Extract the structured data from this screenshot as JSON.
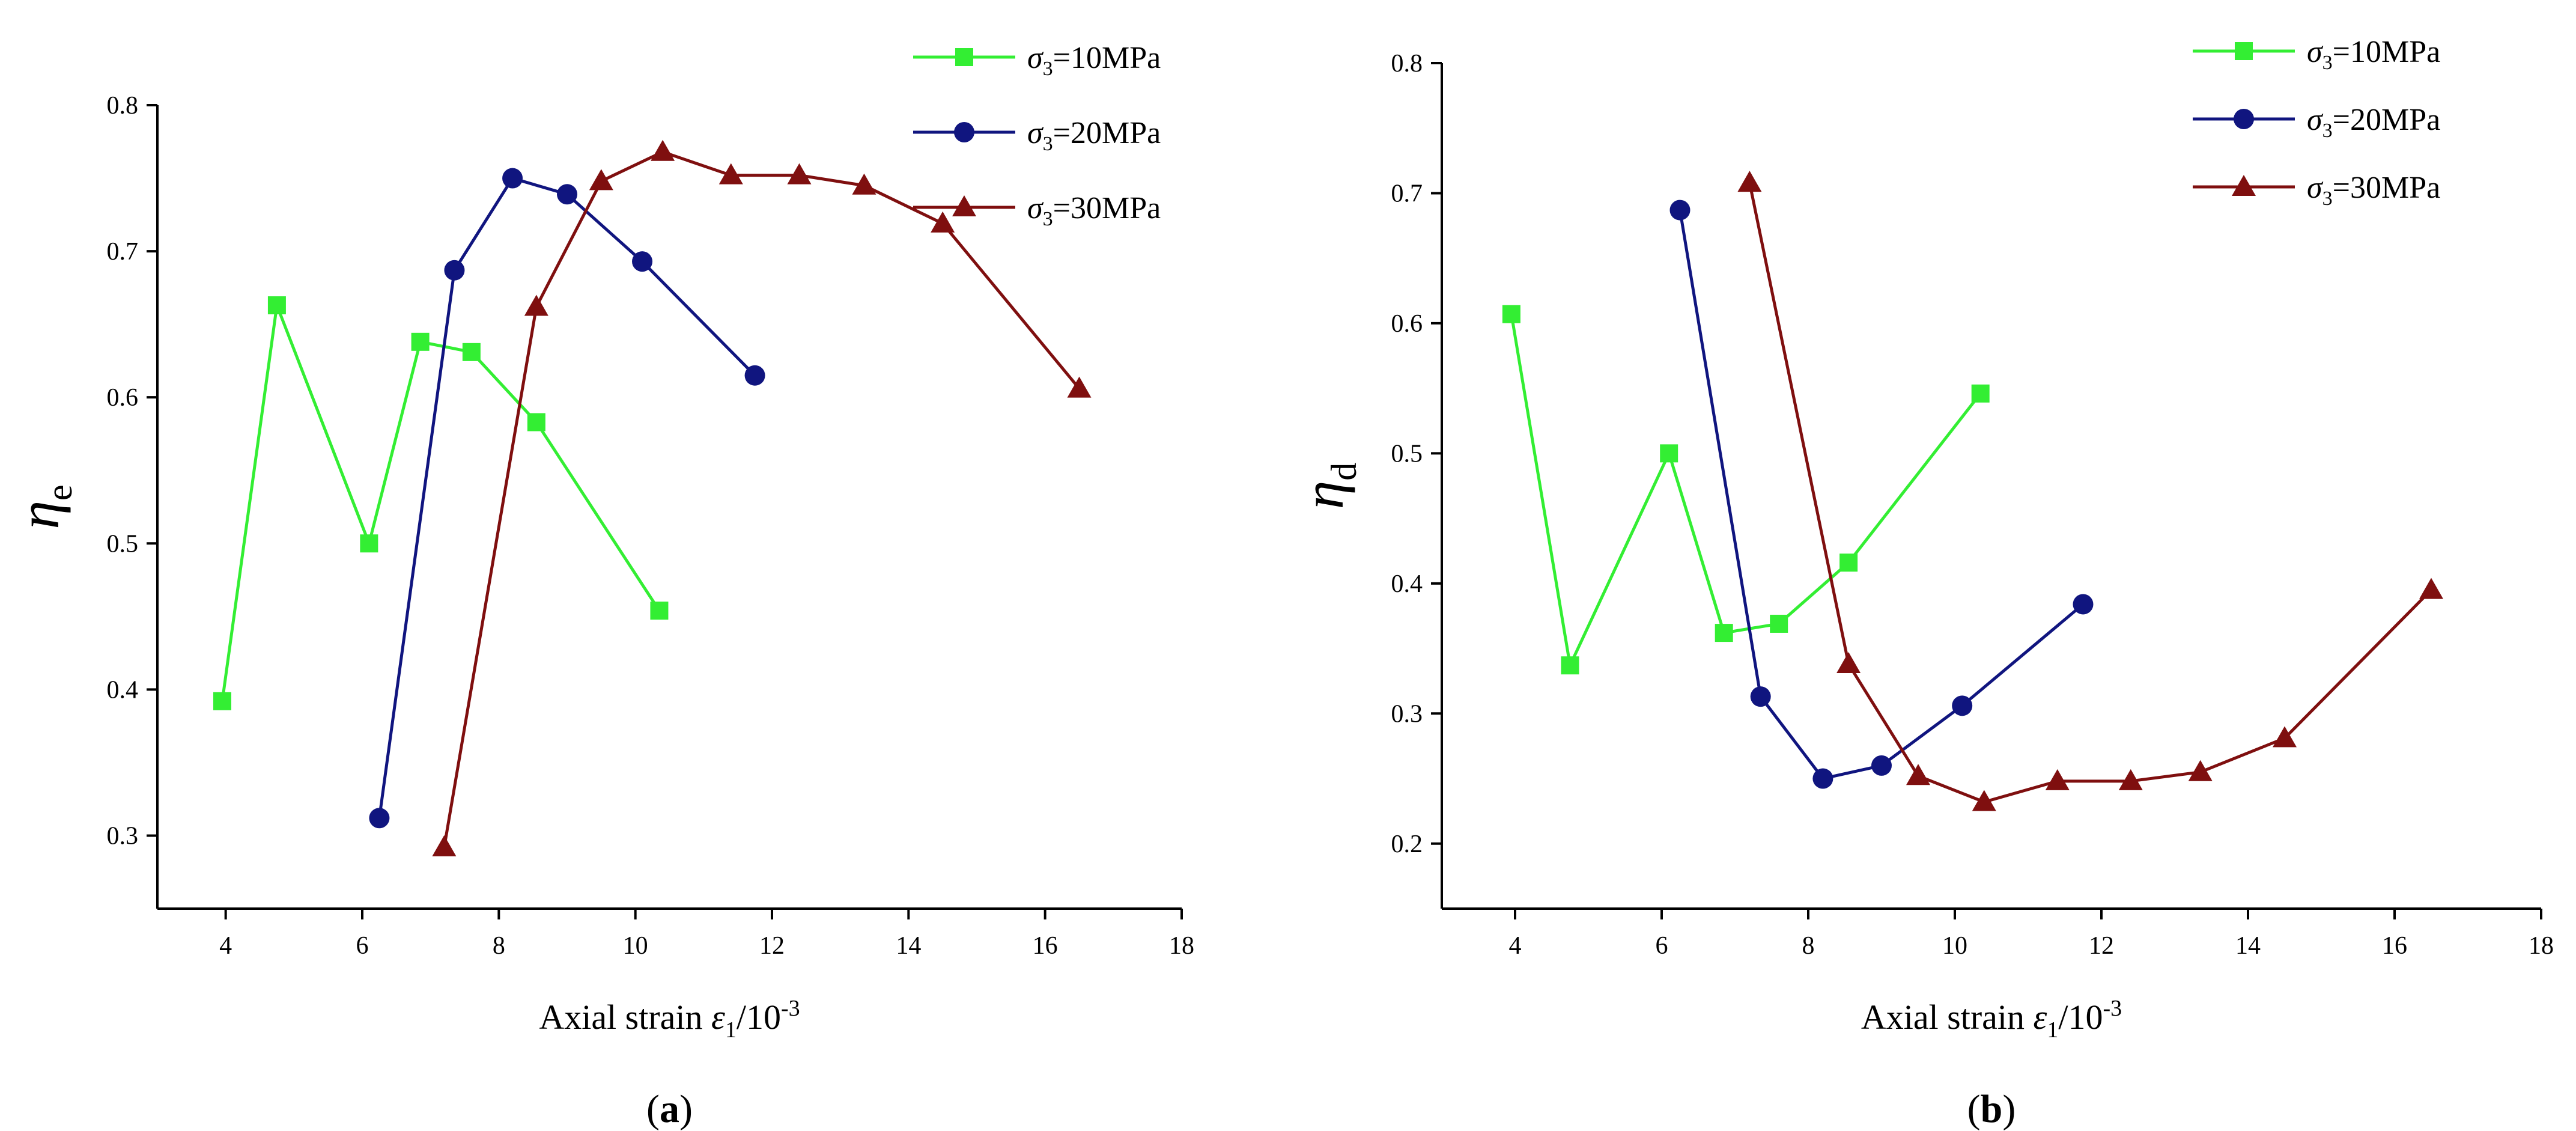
{
  "colors": {
    "series_10": "#33ee33",
    "series_20": "#10157f",
    "series_30": "#7f0f0f",
    "axis": "#000000"
  },
  "chart_data": [
    {
      "type": "line",
      "panel_label": "a",
      "ylabel_symbol": "η",
      "ylabel_sub": "e",
      "xlabel_text": "Axial strain",
      "xlabel_symbol": "ε",
      "xlabel_sub": "1",
      "xlabel_unit": "/10",
      "xlabel_exp": "-3",
      "xlim": [
        3,
        18
      ],
      "ylim": [
        0.25,
        0.8
      ],
      "xticks": [
        "4",
        "6",
        "8",
        "10",
        "12",
        "14",
        "16",
        "18"
      ],
      "yticks": [
        "0.3",
        "0.4",
        "0.5",
        "0.6",
        "0.7",
        "0.8"
      ],
      "legend_position": "top-right",
      "series": [
        {
          "name": "σ3=10MPa",
          "label_symbol": "σ",
          "label_sub": "3",
          "label_rest": "=10MPa",
          "marker": "square",
          "color_key": "series_10",
          "x": [
            3.95,
            4.75,
            6.1,
            6.85,
            7.6,
            8.55,
            10.35
          ],
          "y": [
            0.392,
            0.663,
            0.5,
            0.638,
            0.631,
            0.583,
            0.454
          ]
        },
        {
          "name": "σ3=20MPa",
          "label_symbol": "σ",
          "label_sub": "3",
          "label_rest": "=20MPa",
          "marker": "circle",
          "color_key": "series_20",
          "x": [
            6.25,
            7.35,
            8.2,
            9.0,
            10.1,
            11.75
          ],
          "y": [
            0.312,
            0.687,
            0.75,
            0.739,
            0.693,
            0.615
          ]
        },
        {
          "name": "σ3=30MPa",
          "label_symbol": "σ",
          "label_sub": "3",
          "label_rest": "=30MPa",
          "marker": "triangle",
          "color_key": "series_30",
          "x": [
            7.2,
            8.55,
            9.5,
            10.4,
            11.4,
            12.4,
            13.35,
            14.5,
            16.5
          ],
          "y": [
            0.292,
            0.662,
            0.748,
            0.768,
            0.752,
            0.752,
            0.745,
            0.719,
            0.606
          ]
        }
      ]
    },
    {
      "type": "line",
      "panel_label": "b",
      "ylabel_symbol": "η",
      "ylabel_sub": "d",
      "xlabel_text": "Axial strain",
      "xlabel_symbol": "ε",
      "xlabel_sub": "1",
      "xlabel_unit": "/10",
      "xlabel_exp": "-3",
      "xlim": [
        3,
        18
      ],
      "ylim": [
        0.15,
        0.8
      ],
      "xticks": [
        "4",
        "6",
        "8",
        "10",
        "12",
        "14",
        "16",
        "18"
      ],
      "yticks": [
        "0.2",
        "0.3",
        "0.4",
        "0.5",
        "0.6",
        "0.7",
        "0.8"
      ],
      "legend_position": "top-right",
      "series": [
        {
          "name": "σ3=10MPa",
          "label_symbol": "σ",
          "label_sub": "3",
          "label_rest": "=10MPa",
          "marker": "square",
          "color_key": "series_10",
          "x": [
            3.95,
            4.75,
            6.1,
            6.85,
            7.6,
            8.55,
            10.35
          ],
          "y": [
            0.607,
            0.337,
            0.5,
            0.362,
            0.369,
            0.416,
            0.546
          ]
        },
        {
          "name": "σ3=20MPa",
          "label_symbol": "σ",
          "label_sub": "3",
          "label_rest": "=20MPa",
          "marker": "circle",
          "color_key": "series_20",
          "x": [
            6.25,
            7.35,
            8.2,
            9.0,
            10.1,
            11.75
          ],
          "y": [
            0.687,
            0.313,
            0.25,
            0.26,
            0.306,
            0.384
          ]
        },
        {
          "name": "σ3=30MPa",
          "label_symbol": "σ",
          "label_sub": "3",
          "label_rest": "=30MPa",
          "marker": "triangle",
          "color_key": "series_30",
          "x": [
            7.2,
            8.55,
            9.5,
            10.4,
            11.4,
            12.4,
            13.35,
            14.5,
            16.5
          ],
          "y": [
            0.708,
            0.338,
            0.252,
            0.232,
            0.248,
            0.248,
            0.255,
            0.281,
            0.395
          ]
        }
      ]
    }
  ]
}
